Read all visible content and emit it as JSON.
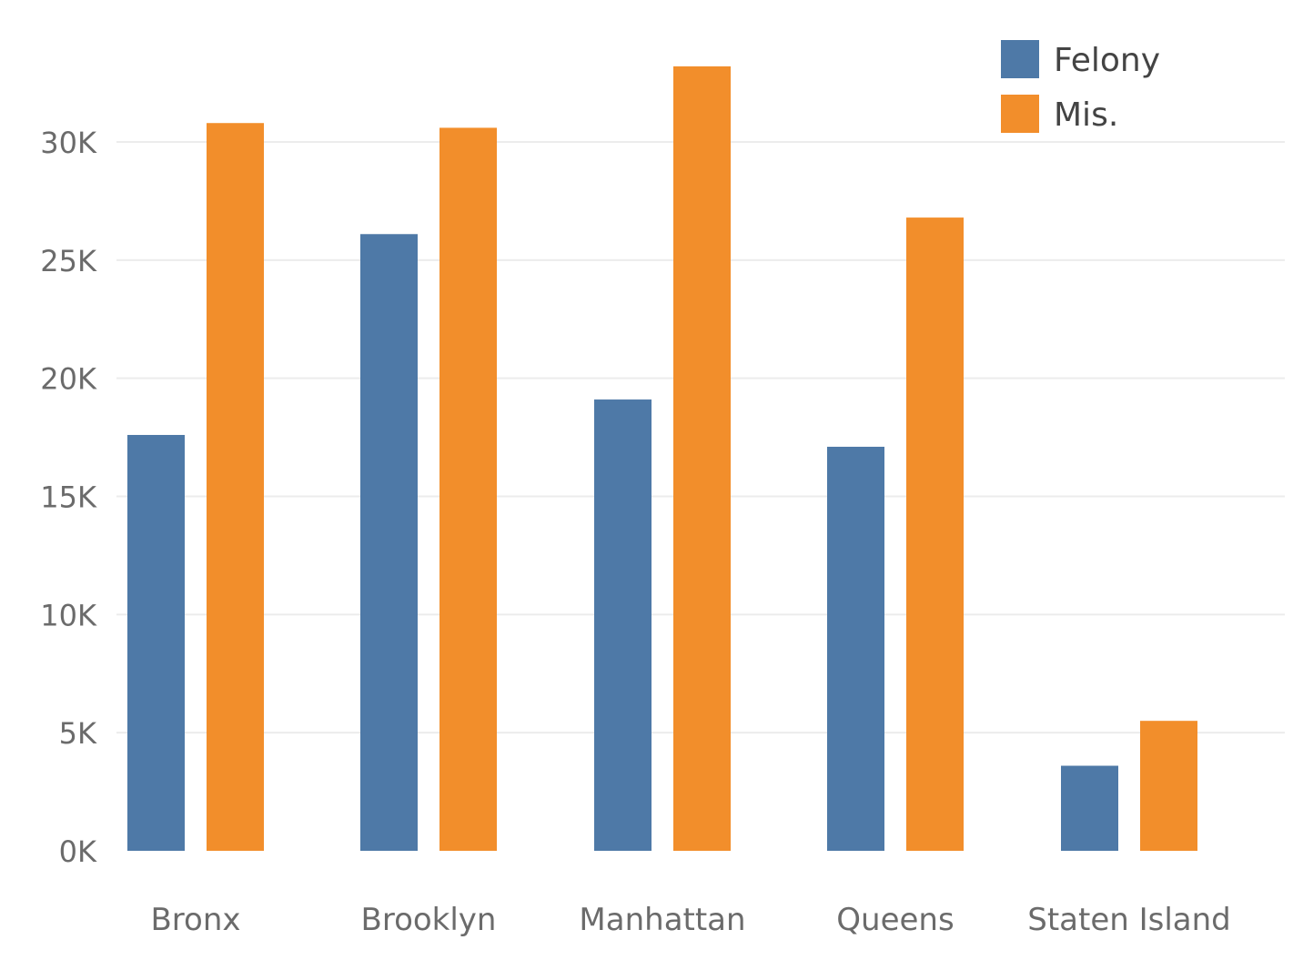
{
  "chart_data": {
    "type": "bar",
    "categories": [
      "Bronx",
      "Brooklyn",
      "Manhattan",
      "Queens",
      "Staten Island"
    ],
    "series": [
      {
        "name": "Felony",
        "values": [
          17600,
          26100,
          19100,
          17100,
          3600
        ],
        "color": "#4e79a7"
      },
      {
        "name": "Mis.",
        "values": [
          30800,
          30600,
          33200,
          26800,
          5500
        ],
        "color": "#f28e2b"
      }
    ],
    "yticks": [
      {
        "value": 0,
        "label": "0K"
      },
      {
        "value": 5000,
        "label": "5K"
      },
      {
        "value": 10000,
        "label": "10K"
      },
      {
        "value": 15000,
        "label": "15K"
      },
      {
        "value": 20000,
        "label": "20K"
      },
      {
        "value": 25000,
        "label": "25K"
      },
      {
        "value": 30000,
        "label": "30K"
      }
    ],
    "ylim": [
      0,
      34000
    ],
    "title": "",
    "xlabel": "",
    "ylabel": "",
    "grid": true,
    "legend_position": "top-right"
  }
}
